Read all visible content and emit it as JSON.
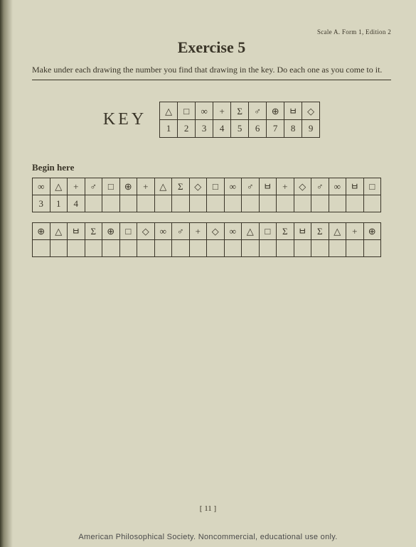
{
  "meta": "Scale A.  Form 1, Edition 2",
  "title": "Exercise 5",
  "instructions": "Make under each drawing the number you find that drawing in the key.  Do each one as you come to it.",
  "key_label": "KEY",
  "key": {
    "symbols": [
      "△",
      "□",
      "∞",
      "+",
      "Σ",
      "♂",
      "⊕",
      "ㅂ",
      "◇"
    ],
    "numbers": [
      "1",
      "2",
      "3",
      "4",
      "5",
      "6",
      "7",
      "8",
      "9"
    ]
  },
  "begin_label": "Begin here",
  "row1": {
    "symbols": [
      "∞",
      "△",
      "+",
      "♂",
      "□",
      "⊕",
      "+",
      "△",
      "Σ",
      "◇",
      "□",
      "∞",
      "♂",
      "ㅂ",
      "+",
      "◇",
      "♂",
      "∞",
      "ㅂ",
      "□"
    ],
    "answers": [
      "3",
      "1",
      "4",
      "",
      "",
      "",
      "",
      "",
      "",
      "",
      "",
      "",
      "",
      "",
      "",
      "",
      "",
      "",
      "",
      ""
    ]
  },
  "row2": {
    "symbols": [
      "⊕",
      "△",
      "ㅂ",
      "Σ",
      "⊕",
      "□",
      "◇",
      "∞",
      "♂",
      "+",
      "◇",
      "∞",
      "△",
      "□",
      "Σ",
      "ㅂ",
      "Σ",
      "△",
      "+",
      "⊕"
    ],
    "answers": [
      "",
      "",
      "",
      "",
      "",
      "",
      "",
      "",
      "",
      "",
      "",
      "",
      "",
      "",
      "",
      "",
      "",
      "",
      "",
      ""
    ]
  },
  "page_number": "[ 11 ]",
  "footer": "American Philosophical Society.  Noncommercial, educational use only."
}
